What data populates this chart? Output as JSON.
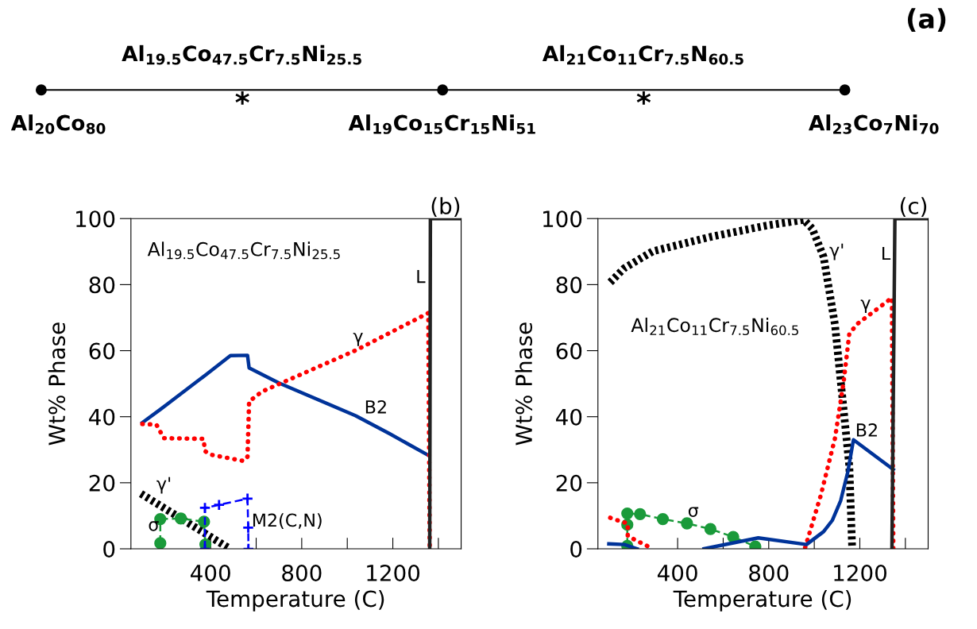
{
  "chart_data": [
    {
      "type": "other",
      "title": "(a)",
      "annotations": [
        "*",
        "*",
        "Al$_{20}$Co$_{80}$",
        "Al$_{19.5}$Co$_{47.5}$Cr$_{7.5}$Ni$_{25.5}$",
        "Al$_{19}$Co$_{15}$Cr$_{15}$Ni$_{51}$",
        "Al$_{21}$Co$_{11}$Cr$_{7.5}$N$_{60.5}$",
        "Al$_{23}$Co$_{7}$Ni$_{70}$"
      ]
    },
    {
      "type": "line",
      "title": "(b)",
      "xlabel": "Temperature (C)",
      "ylabel": "Wt% Phase",
      "xlim": [
        50,
        1500
      ],
      "ylim": [
        0,
        100
      ],
      "xticks": [
        400,
        {
          "value": 600,
          "label": null
        },
        800,
        {
          "value": 1000,
          "label": null
        },
        1200,
        {
          "value": 1400,
          "label": null
        }
      ],
      "yticks": [
        0,
        20,
        40,
        60,
        80,
        100
      ],
      "series": [
        {
          "name": "B2",
          "color": "#003399",
          "line_style": "solid",
          "marker": "none",
          "x": [
            100,
            181,
            381,
            487,
            562,
            569,
            700,
            1037,
            1187,
            1356
          ],
          "values": [
            38.2,
            42.3,
            52.8,
            58.5,
            58.6,
            54.8,
            50.2,
            40.3,
            34.8,
            28.3
          ]
        },
        {
          "name": "γ",
          "color": "#ff0000",
          "line_style": "dotted",
          "marker": "none",
          "x": [
            100,
            162,
            181,
            194,
            369,
            375,
            400,
            544,
            562,
            569,
            625,
            1037,
            1356,
            1362
          ],
          "values": [
            37.8,
            37.6,
            35.2,
            33.5,
            33.3,
            29.6,
            28.5,
            26.6,
            27.9,
            44.6,
            47.6,
            60.1,
            71.4,
            0
          ]
        },
        {
          "name": "γ'",
          "color": "#000000",
          "line_style": "dashed",
          "marker": "none",
          "x": [
            94,
            475
          ],
          "values": [
            16.7,
            0.4
          ]
        },
        {
          "name": "σ",
          "color": "#1a9a3a",
          "line_style": "dashed",
          "marker": "circle",
          "x": [
            179,
            179,
            269,
            371,
            377
          ],
          "values": [
            1.7,
            9.0,
            9.2,
            8.2,
            1.3
          ]
        },
        {
          "name": "M2(C,N)",
          "color": "#0000ff",
          "line_style": "dashed",
          "marker": "cross",
          "x": [
            375,
            375,
            437,
            562,
            565,
            566
          ],
          "values": [
            0,
            12.4,
            13.3,
            15.2,
            6.4,
            0
          ]
        },
        {
          "name": "L",
          "color": "#222222",
          "line_style": "solid",
          "marker": "none",
          "x": [
            1362,
            1365,
            1500
          ],
          "values": [
            0,
            100,
            100
          ]
        }
      ],
      "annotations": [
        "Al$_{19.5}$Co$_{47.5}$Cr$_{7.5}$Ni$_{25.5}$"
      ]
    },
    {
      "type": "line",
      "title": "(c)",
      "xlabel": "Temperature (C)",
      "ylabel": "Wt% Phase",
      "xlim": [
        50,
        1500
      ],
      "ylim": [
        0,
        100
      ],
      "xticks": [
        400,
        {
          "value": 600,
          "label": null
        },
        800,
        {
          "value": 1000,
          "label": null
        },
        1200,
        {
          "value": 1400,
          "label": null
        }
      ],
      "yticks": [
        0,
        20,
        40,
        60,
        80,
        100
      ],
      "series": [
        {
          "name": "γ'",
          "color": "#000000",
          "line_style": "dashed",
          "marker": "none",
          "x": [
            104,
            166,
            291,
            541,
            791,
            954,
            991,
            1041,
            1091,
            1129,
            1154,
            1166
          ],
          "values": [
            80.7,
            85,
            90.1,
            94.4,
            97.9,
            99.6,
            97,
            88.4,
            67.8,
            42,
            24.9,
            0.9
          ]
        },
        {
          "name": "σ",
          "color": "#1a9a3a",
          "line_style": "dashed",
          "marker": "circle",
          "x": [
            179,
            179,
            179,
            235,
            335,
            441,
            544,
            644,
            741
          ],
          "values": [
            0.9,
            7.3,
            10.7,
            10.5,
            9.0,
            7.7,
            6.0,
            3.6,
            0.7
          ]
        },
        {
          "name": "γ",
          "color": "#ff0000",
          "line_style": "dotted",
          "marker": "none",
          "x": [
            104,
            154,
            181,
            181,
            216,
            291,
            600,
            960,
            1029,
            1091,
            1129,
            1154,
            1191,
            1341,
            1347
          ],
          "values": [
            9.4,
            8.2,
            7.7,
            3.9,
            2.6,
            0,
            null,
            0.4,
            16.3,
            33.5,
            50.6,
            65.2,
            68.2,
            76,
            0
          ]
        },
        {
          "name": "B2",
          "color": "#003399",
          "line_style": "solid",
          "marker": "none",
          "x": [
            98,
            166,
            222,
            400,
            516,
            754,
            966,
            1041,
            1079,
            1116,
            1147,
            1172,
            1347
          ],
          "values": [
            1.5,
            1.3,
            0,
            null,
            0,
            3.3,
            1.3,
            5.2,
            8.6,
            14.6,
            23.2,
            33,
            24
          ]
        },
        {
          "name": "L",
          "color": "#222222",
          "line_style": "solid",
          "marker": "none",
          "x": [
            1341,
            1354,
            1500
          ],
          "values": [
            0,
            100,
            100
          ]
        }
      ],
      "annotations": [
        "Al$_{21}$Co$_{11}$Cr$_{7.5}$Ni$_{60.5}$"
      ]
    }
  ]
}
